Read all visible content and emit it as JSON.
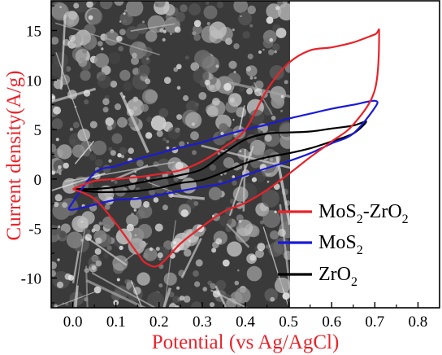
{
  "colors": {
    "accent": "#e8232a",
    "mos2_zro2": "#e8232a",
    "mos2": "#1a1ad9",
    "zro2": "#000000",
    "axis": "#000000",
    "sem_dark": "#2b2b2b"
  },
  "chart_data": {
    "type": "line",
    "title": "",
    "xlabel": "Potential (vs Ag/AgCl)",
    "ylabel": "Current  density(A/g)",
    "xlim": [
      -0.05,
      0.85
    ],
    "ylim": [
      -13,
      18
    ],
    "xticks": [
      "0.0",
      "0.1",
      "0.2",
      "0.3",
      "0.4",
      "0.5",
      "0.6",
      "0.7",
      "0.8"
    ],
    "yticks": [
      "15",
      "10",
      "5",
      "0",
      "-5",
      "-10"
    ],
    "grid": false,
    "legend_position": "right",
    "inset": "SEM micrograph of nanostructured material (left portion of plot area)",
    "legend": [
      {
        "name": "MoS",
        "sub": "2",
        "rest": "-ZrO",
        "sub2": "2"
      },
      {
        "name": "MoS",
        "sub": "2",
        "rest": "",
        "sub2": ""
      },
      {
        "name": "ZrO",
        "sub": "2",
        "rest": "",
        "sub2": ""
      }
    ],
    "series": [
      {
        "name": "MoS2-ZrO2",
        "color": "#e8232a",
        "x": [
          0.0,
          0.05,
          0.1,
          0.15,
          0.2,
          0.25,
          0.3,
          0.35,
          0.4,
          0.45,
          0.5,
          0.55,
          0.6,
          0.65,
          0.7,
          0.71,
          0.7,
          0.65,
          0.6,
          0.55,
          0.5,
          0.45,
          0.4,
          0.35,
          0.3,
          0.25,
          0.2,
          0.17,
          0.15,
          0.1,
          0.05,
          0.0
        ],
        "y": [
          -1.0,
          -0.2,
          0.0,
          0.2,
          0.5,
          0.9,
          1.8,
          3.2,
          5.0,
          9.0,
          11.7,
          13.0,
          13.3,
          13.8,
          14.6,
          14.7,
          9.0,
          5.5,
          3.8,
          2.2,
          0.5,
          -1.1,
          -2.4,
          -3.3,
          -4.8,
          -6.5,
          -8.7,
          -8.5,
          -7.5,
          -4.5,
          -2.0,
          -1.0
        ]
      },
      {
        "name": "MoS2",
        "color": "#1a1ad9",
        "x": [
          -0.01,
          0.05,
          0.1,
          0.15,
          0.2,
          0.25,
          0.3,
          0.35,
          0.4,
          0.45,
          0.5,
          0.55,
          0.6,
          0.65,
          0.7,
          0.7,
          0.65,
          0.6,
          0.55,
          0.5,
          0.45,
          0.4,
          0.35,
          0.3,
          0.25,
          0.2,
          0.15,
          0.1,
          0.05,
          0.0,
          -0.01
        ],
        "y": [
          -3.0,
          0.6,
          1.3,
          2.0,
          2.6,
          3.2,
          3.7,
          4.4,
          5.0,
          5.5,
          6.1,
          6.6,
          7.1,
          7.5,
          7.9,
          7.2,
          4.6,
          3.6,
          2.6,
          1.8,
          1.1,
          0.4,
          -0.4,
          -0.8,
          -1.2,
          -1.6,
          -2.0,
          -2.1,
          -2.6,
          -3.1,
          -3.0
        ]
      },
      {
        "name": "ZrO2",
        "color": "#000000",
        "x": [
          0.0,
          0.05,
          0.1,
          0.15,
          0.2,
          0.25,
          0.3,
          0.35,
          0.4,
          0.45,
          0.5,
          0.55,
          0.6,
          0.65,
          0.68,
          0.65,
          0.6,
          0.55,
          0.5,
          0.45,
          0.4,
          0.35,
          0.3,
          0.25,
          0.2,
          0.15,
          0.1,
          0.05,
          0.0
        ],
        "y": [
          -1.0,
          -1.0,
          -0.8,
          -0.4,
          0.0,
          0.4,
          1.0,
          2.6,
          4.0,
          4.6,
          4.7,
          4.8,
          5.1,
          5.4,
          5.8,
          4.6,
          3.8,
          3.1,
          2.6,
          2.2,
          1.6,
          0.7,
          -0.1,
          -0.4,
          -0.9,
          -1.2,
          -1.3,
          -1.3,
          -1.0
        ]
      }
    ]
  }
}
